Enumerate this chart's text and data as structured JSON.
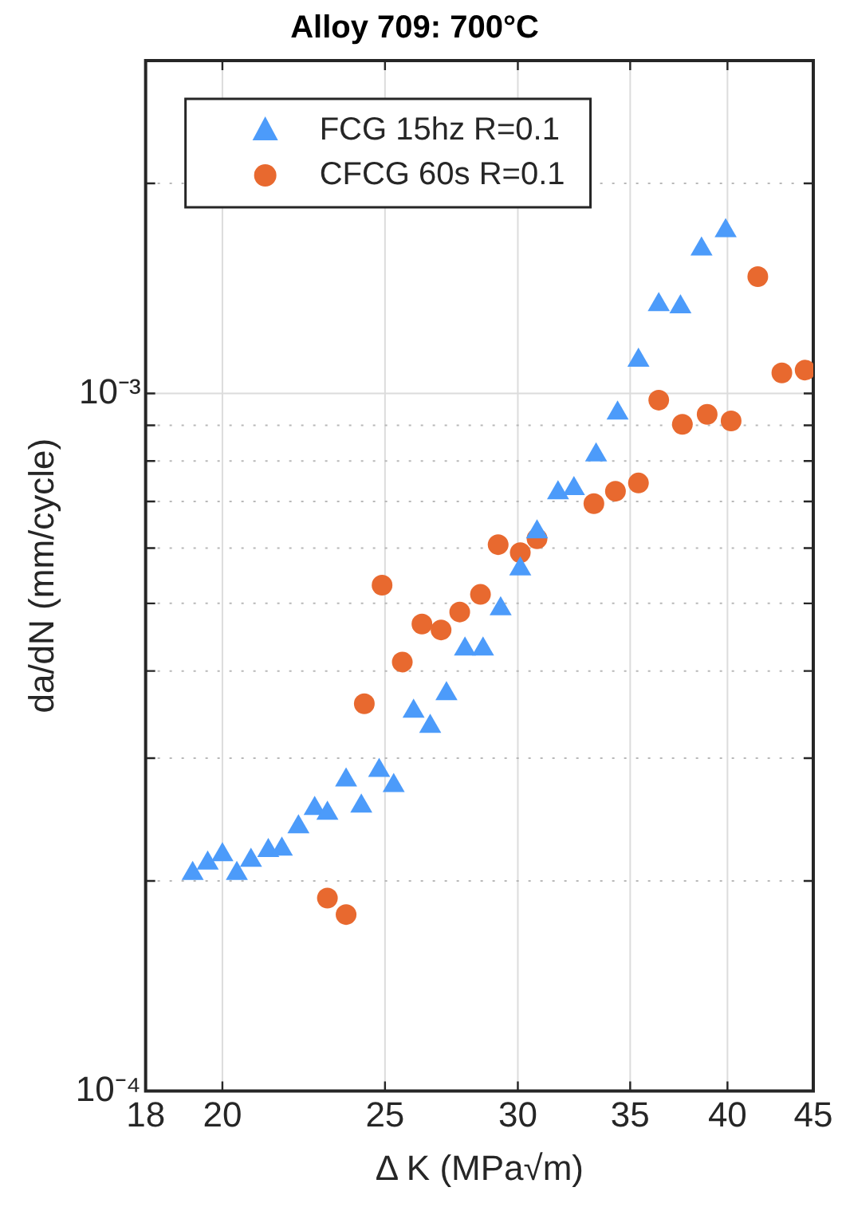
{
  "chart_data": {
    "type": "scatter",
    "title": "Alloy 709: 700°C",
    "xlabel": "Δ K (MPa√m)",
    "ylabel": "da/dN (mm/cycle)",
    "log": "xy",
    "grid": true,
    "legend": "top left",
    "xlim": [
      18,
      45
    ],
    "xticks": [
      18,
      20,
      25,
      30,
      35,
      40,
      45
    ],
    "ylim": [
      0.0001,
      0.003
    ],
    "yticks": [
      {
        "value": 0.0001,
        "label": "10⁻⁴"
      },
      {
        "value": 0.0002,
        "label": null
      },
      {
        "value": 0.0003,
        "label": null
      },
      {
        "value": 0.0004,
        "label": null
      },
      {
        "value": 0.0005,
        "label": null
      },
      {
        "value": 0.0006,
        "label": null
      },
      {
        "value": 0.0007,
        "label": null
      },
      {
        "value": 0.0008,
        "label": null
      },
      {
        "value": 0.0009,
        "label": null
      },
      {
        "value": 0.001,
        "label": "10⁻³"
      },
      {
        "value": 0.002,
        "label": null
      },
      {
        "value": 0.003,
        "label": null
      }
    ],
    "series": [
      {
        "name": "FCG 15hz R=0.1",
        "color": "#4c9bfa",
        "marker": "triangle",
        "x": [
          19.2,
          19.6,
          20.0,
          20.4,
          20.8,
          21.3,
          21.7,
          22.2,
          22.7,
          23.1,
          23.7,
          24.2,
          24.8,
          25.3,
          26.0,
          26.6,
          27.2,
          27.9,
          28.6,
          29.3,
          30.1,
          30.8,
          31.7,
          32.4,
          33.4,
          34.4,
          35.4,
          36.4,
          37.5,
          38.6,
          39.9
        ],
        "values": [
          0.000205,
          0.000212,
          0.000218,
          0.000205,
          0.000214,
          0.000221,
          0.000222,
          0.000239,
          0.000254,
          0.00025,
          0.000279,
          0.000256,
          0.000288,
          0.000274,
          0.00035,
          0.000333,
          0.000371,
          0.00043,
          0.00043,
          0.000491,
          0.00056,
          0.000633,
          0.00072,
          0.00073,
          0.000816,
          0.000937,
          0.001115,
          0.00134,
          0.00133,
          0.00161,
          0.00171
        ]
      },
      {
        "name": "CFCG 60s R=0.1",
        "color": "#e8692f",
        "marker": "circle",
        "x": [
          23.1,
          23.7,
          24.3,
          24.9,
          25.6,
          26.3,
          27.0,
          27.7,
          28.5,
          29.2,
          30.1,
          30.8,
          33.3,
          34.3,
          35.4,
          36.4,
          37.6,
          38.9,
          40.2,
          41.7,
          43.1,
          44.5
        ],
        "values": [
          0.000189,
          0.000179,
          0.000359,
          0.000531,
          0.000412,
          0.000467,
          0.000458,
          0.000486,
          0.000515,
          0.000607,
          0.000591,
          0.000619,
          0.000695,
          0.000724,
          0.000744,
          0.000978,
          0.000903,
          0.000933,
          0.000913,
          0.00147,
          0.00107,
          0.00108
        ]
      }
    ]
  }
}
